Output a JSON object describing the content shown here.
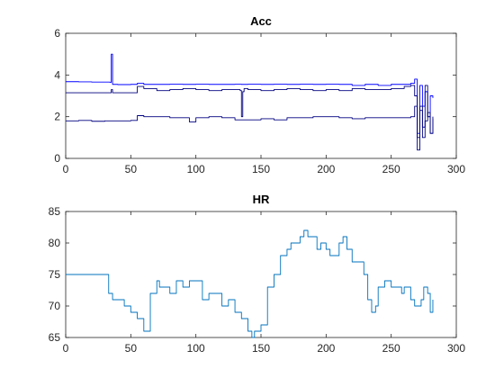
{
  "chart_data": [
    {
      "type": "line",
      "title": "Acc",
      "xlabel": "",
      "ylabel": "",
      "xlim": [
        0,
        300
      ],
      "ylim": [
        0,
        6
      ],
      "xticks": [
        0,
        50,
        100,
        150,
        200,
        250,
        300
      ],
      "yticks": [
        0,
        2,
        4,
        6
      ],
      "grid": false,
      "series": [
        {
          "color": "#0000ff",
          "step": true,
          "x": [
            0,
            10,
            20,
            30,
            34,
            35,
            36,
            40,
            50,
            55,
            60,
            70,
            80,
            90,
            100,
            110,
            120,
            130,
            135,
            140,
            150,
            160,
            170,
            180,
            190,
            200,
            210,
            220,
            230,
            240,
            250,
            260,
            265,
            268,
            270,
            272,
            274,
            276,
            278,
            280,
            282
          ],
          "y": [
            3.68,
            3.67,
            3.66,
            3.66,
            3.65,
            5.0,
            3.55,
            3.54,
            3.55,
            3.6,
            3.55,
            3.55,
            3.56,
            3.55,
            3.56,
            3.55,
            3.55,
            3.56,
            3.55,
            3.56,
            3.55,
            3.56,
            3.55,
            3.56,
            3.55,
            3.56,
            3.55,
            3.5,
            3.55,
            3.5,
            3.55,
            3.55,
            3.6,
            3.8,
            1.2,
            3.5,
            2.5,
            3.2,
            2.0,
            3.0,
            2.9
          ]
        },
        {
          "color": "#000080",
          "step": true,
          "x": [
            0,
            10,
            20,
            30,
            35,
            36,
            40,
            50,
            55,
            60,
            70,
            80,
            90,
            100,
            110,
            120,
            130,
            134,
            135,
            136,
            137,
            140,
            150,
            160,
            170,
            180,
            190,
            200,
            210,
            220,
            230,
            240,
            250,
            260,
            265,
            268,
            270,
            272,
            274,
            276,
            278,
            280,
            282
          ],
          "y": [
            3.15,
            3.15,
            3.15,
            3.15,
            3.3,
            3.15,
            3.15,
            3.15,
            3.45,
            3.35,
            3.25,
            3.3,
            3.35,
            3.3,
            3.25,
            3.3,
            3.3,
            3.25,
            2.0,
            3.2,
            3.35,
            3.3,
            3.25,
            3.3,
            3.35,
            3.3,
            3.25,
            3.3,
            3.25,
            3.35,
            3.3,
            3.3,
            3.35,
            3.45,
            3.5,
            3.0,
            0.4,
            2.5,
            1.5,
            3.5,
            2.0,
            1.2,
            2.0
          ]
        },
        {
          "color": "#000080",
          "step": true,
          "x": [
            0,
            10,
            20,
            30,
            40,
            50,
            55,
            60,
            70,
            80,
            90,
            95,
            100,
            110,
            120,
            130,
            140,
            150,
            160,
            170,
            180,
            190,
            200,
            210,
            220,
            230,
            240,
            250,
            260,
            265,
            268,
            270,
            272,
            274,
            276,
            278,
            280,
            282
          ],
          "y": [
            1.8,
            1.82,
            1.78,
            1.8,
            1.8,
            1.82,
            2.05,
            2.0,
            2.0,
            1.95,
            1.95,
            1.75,
            1.95,
            2.0,
            1.95,
            1.85,
            1.85,
            1.9,
            1.85,
            1.95,
            1.95,
            2.0,
            2.0,
            1.95,
            1.9,
            1.95,
            1.95,
            1.95,
            1.95,
            2.0,
            2.5,
            1.0,
            2.3,
            1.0,
            1.8,
            2.2,
            1.2,
            1.9
          ]
        }
      ]
    },
    {
      "type": "line",
      "title": "HR",
      "xlabel": "",
      "ylabel": "",
      "xlim": [
        0,
        300
      ],
      "ylim": [
        65,
        85
      ],
      "xticks": [
        0,
        50,
        100,
        150,
        200,
        250,
        300
      ],
      "yticks": [
        65,
        70,
        75,
        80,
        85
      ],
      "grid": false,
      "series": [
        {
          "color": "#0072bd",
          "step": true,
          "x": [
            0,
            30,
            33,
            36,
            40,
            45,
            50,
            55,
            60,
            63,
            65,
            70,
            72,
            75,
            78,
            80,
            85,
            88,
            90,
            95,
            100,
            105,
            110,
            115,
            120,
            125,
            130,
            135,
            140,
            143,
            145,
            150,
            153,
            155,
            160,
            163,
            165,
            170,
            173,
            175,
            178,
            180,
            183,
            186,
            190,
            193,
            196,
            200,
            203,
            206,
            210,
            213,
            216,
            220,
            223,
            226,
            229,
            232,
            235,
            238,
            240,
            245,
            250,
            255,
            258,
            260,
            265,
            268,
            270,
            273,
            275,
            278,
            280,
            282
          ],
          "y": [
            75,
            75,
            72,
            71,
            71,
            70,
            69,
            68,
            66,
            66,
            72,
            74,
            73,
            73,
            73,
            72,
            74,
            74,
            73,
            74,
            74,
            71,
            72,
            72,
            70,
            71,
            69,
            68,
            66,
            65,
            66,
            67,
            67,
            73,
            75,
            75,
            78,
            79,
            80,
            80,
            80,
            81,
            82,
            81,
            81,
            79,
            80,
            79,
            78,
            78,
            80,
            81,
            79,
            77,
            77,
            77,
            75,
            71,
            69,
            70,
            73,
            74,
            73,
            73,
            72,
            73,
            71,
            70,
            70,
            71,
            73,
            72,
            69,
            71
          ]
        }
      ]
    }
  ]
}
